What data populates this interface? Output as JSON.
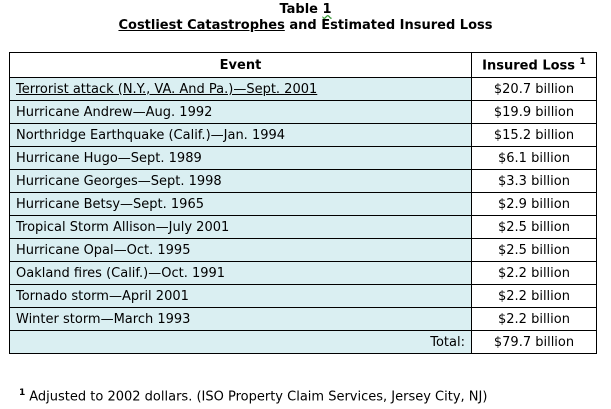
{
  "title": {
    "line1_word": "Table",
    "line1_number": "1",
    "line2_underlined": "Costliest Catastrophes",
    "line2_rest": " and Estimated Insured Loss"
  },
  "table": {
    "headers": {
      "event": "Event",
      "loss": "Insured Loss",
      "loss_footnote_marker": "1"
    },
    "rows": [
      {
        "event": "Terrorist attack (N.Y., VA. And Pa.)—Sept. 2001",
        "loss": "$20.7 billion"
      },
      {
        "event": "Hurricane Andrew—Aug. 1992",
        "loss": "$19.9 billion"
      },
      {
        "event": "Northridge Earthquake (Calif.)—Jan. 1994",
        "loss": "$15.2 billion"
      },
      {
        "event": "Hurricane Hugo—Sept. 1989",
        "loss": "$6.1 billion"
      },
      {
        "event": "Hurricane Georges—Sept. 1998",
        "loss": "$3.3 billion"
      },
      {
        "event": "Hurricane Betsy—Sept. 1965",
        "loss": "$2.9 billion"
      },
      {
        "event": "Tropical Storm Allison—July 2001",
        "loss": "$2.5 billion"
      },
      {
        "event": "Hurricane Opal—Oct. 1995",
        "loss": "$2.5 billion"
      },
      {
        "event": "Oakland fires (Calif.)—Oct. 1991",
        "loss": "$2.2 billion"
      },
      {
        "event": "Tornado storm—April 2001",
        "loss": "$2.2 billion"
      },
      {
        "event": "Winter storm—March 1993",
        "loss": "$2.2 billion"
      }
    ],
    "total_label": "Total:",
    "total_value": "$79.7 billion"
  },
  "footnote": {
    "marker": "1",
    "text": "Adjusted to 2002 dollars. (ISO Property Claim Services, Jersey City, NJ)"
  },
  "colors": {
    "event_cell_fill": "#cde9ee",
    "border": "#000000",
    "spellcheck_squiggle": "#3a9a3a"
  }
}
